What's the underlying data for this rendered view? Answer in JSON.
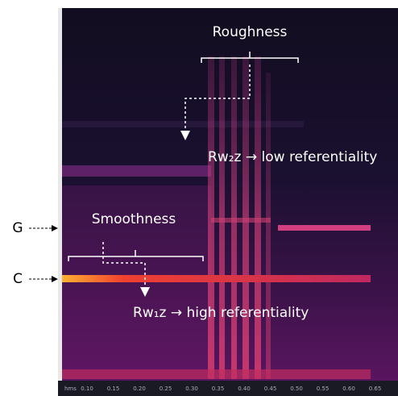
{
  "annotations": {
    "roughness": {
      "label": "Roughness",
      "result": "Rw₂z → low referentiality"
    },
    "smoothness": {
      "label": "Smoothness",
      "result": "Rw₁z → high referentiality"
    },
    "notes": [
      "G",
      "C"
    ]
  },
  "time_axis": {
    "unit": "hms",
    "labels": [
      "0.10",
      "0.15",
      "0.20",
      "0.25",
      "0.30",
      "0.35",
      "0.40",
      "0.45",
      "0.50",
      "0.55",
      "0.60",
      "0.65"
    ]
  }
}
